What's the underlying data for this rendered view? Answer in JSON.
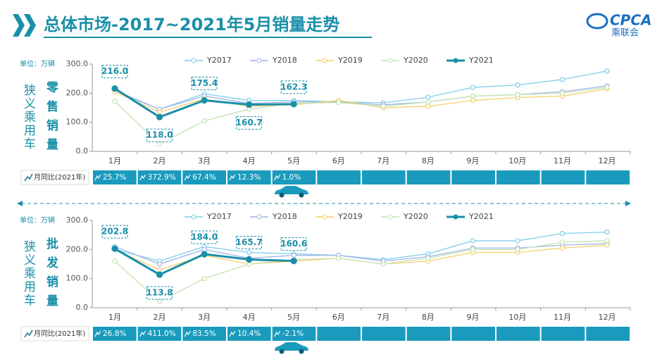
{
  "header": {
    "title": "总体市场-2017~2021年5月销量走势",
    "logo": "CPCA",
    "logo_sub": "乘联会"
  },
  "chart_data": [
    {
      "type": "line",
      "unit": "单位：万辆",
      "side_label": "狭义乘用车",
      "panel_label": "零售销量",
      "categories": [
        "1月",
        "2月",
        "3月",
        "4月",
        "5月",
        "6月",
        "7月",
        "8月",
        "9月",
        "10月",
        "11月",
        "12月"
      ],
      "series": [
        {
          "name": "Y2017",
          "color": "#7dcfea",
          "values": [
            205,
            145,
            198,
            175,
            175,
            170,
            167,
            186,
            220,
            228,
            247,
            276
          ]
        },
        {
          "name": "Y2018",
          "color": "#a0b4e8",
          "values": [
            210,
            145,
            190,
            165,
            170,
            170,
            160,
            170,
            190,
            195,
            205,
            225
          ]
        },
        {
          "name": "Y2019",
          "color": "#f5cf6a",
          "values": [
            205,
            135,
            180,
            155,
            160,
            175,
            150,
            155,
            175,
            185,
            190,
            215
          ]
        },
        {
          "name": "Y2020",
          "color": "#c4e3b2",
          "values": [
            172,
            25,
            105,
            145,
            165,
            168,
            155,
            170,
            190,
            195,
            200,
            220
          ]
        },
        {
          "name": "Y2021",
          "color": "#1a8fa8",
          "values": [
            216.0,
            118.0,
            175.4,
            160.7,
            162.3,
            null,
            null,
            null,
            null,
            null,
            null,
            null
          ],
          "value_labels": [
            "216.0",
            "118.0",
            "175.4",
            "160.7",
            "162.3",
            null,
            null,
            null,
            null,
            null,
            null,
            null
          ]
        }
      ],
      "ylim": [
        0,
        300
      ],
      "yticks": [
        {
          "value": 0,
          "label": "0.0"
        },
        {
          "value": 100,
          "label": "100.0"
        },
        {
          "value": 200,
          "label": "200.0"
        },
        {
          "value": 300,
          "label": "300.0"
        }
      ],
      "yoy_label": "月同比(2021年)",
      "yoy": [
        "25.7%",
        "372.9%",
        "67.4%",
        "12.3%",
        "1.0%"
      ]
    },
    {
      "type": "line",
      "unit": "单位：万辆",
      "side_label": "狭义乘用车",
      "panel_label": "批发销量",
      "categories": [
        "1月",
        "2月",
        "3月",
        "4月",
        "5月",
        "6月",
        "7月",
        "8月",
        "9月",
        "10月",
        "11月",
        "12月"
      ],
      "series": [
        {
          "name": "Y2017",
          "color": "#7dcfea",
          "values": [
            200,
            160,
            210,
            190,
            185,
            180,
            165,
            185,
            230,
            230,
            255,
            260
          ]
        },
        {
          "name": "Y2018",
          "color": "#a0b4e8",
          "values": [
            210,
            150,
            200,
            170,
            180,
            180,
            160,
            175,
            205,
            205,
            215,
            220
          ]
        },
        {
          "name": "Y2019",
          "color": "#f5cf6a",
          "values": [
            200,
            130,
            180,
            150,
            160,
            170,
            150,
            160,
            190,
            190,
            205,
            215
          ]
        },
        {
          "name": "Y2020",
          "color": "#c4e3b2",
          "values": [
            160,
            22,
            100,
            150,
            165,
            170,
            150,
            170,
            200,
            200,
            225,
            230
          ]
        },
        {
          "name": "Y2021",
          "color": "#1a8fa8",
          "values": [
            202.8,
            113.8,
            184.0,
            165.7,
            160.6,
            null,
            null,
            null,
            null,
            null,
            null,
            null
          ],
          "value_labels": [
            "202.8",
            "113.8",
            "184.0",
            "165.7",
            "160.6",
            null,
            null,
            null,
            null,
            null,
            null,
            null
          ]
        }
      ],
      "ylim": [
        0,
        300
      ],
      "yticks": [
        {
          "value": 0,
          "label": "0.0"
        },
        {
          "value": 100,
          "label": "100.0"
        },
        {
          "value": 200,
          "label": "200.0"
        },
        {
          "value": 300,
          "label": "300.0"
        }
      ],
      "yoy_label": "月同比(2021年)",
      "yoy": [
        "26.8%",
        "411.0%",
        "83.5%",
        "10.4%",
        "-2.1%"
      ]
    }
  ]
}
